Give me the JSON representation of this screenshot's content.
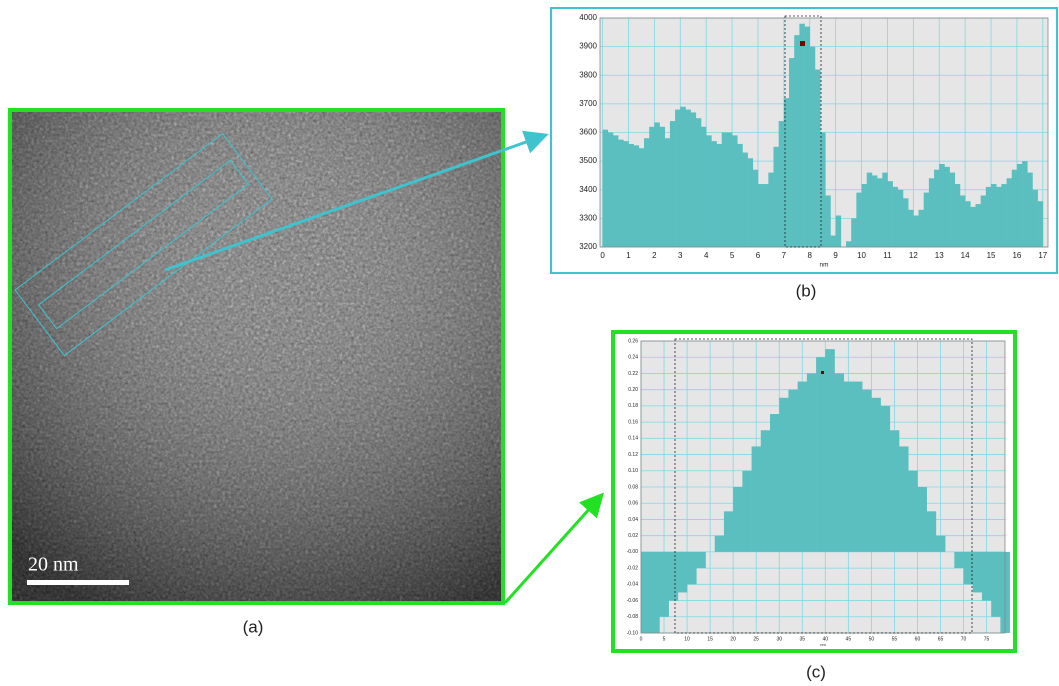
{
  "panels": {
    "a": "(a)",
    "b": "(b)",
    "c": "(c)"
  },
  "scale_bar": "20 nm",
  "chart_data": [
    {
      "type": "area",
      "x_label": "nm",
      "color": "#5bbfbf",
      "grid": true,
      "x": [
        0,
        0.2,
        0.4,
        0.6,
        0.8,
        1.0,
        1.2,
        1.4,
        1.6,
        1.8,
        2.0,
        2.2,
        2.4,
        2.6,
        2.8,
        3.0,
        3.2,
        3.4,
        3.6,
        3.8,
        4.0,
        4.2,
        4.4,
        4.6,
        4.8,
        5.0,
        5.2,
        5.4,
        5.6,
        5.8,
        6.0,
        6.2,
        6.4,
        6.6,
        6.8,
        7.0,
        7.2,
        7.4,
        7.6,
        7.8,
        8.0,
        8.2,
        8.4,
        8.6,
        8.8,
        9.0,
        9.2,
        9.4,
        9.6,
        9.8,
        10.0,
        10.2,
        10.4,
        10.6,
        10.8,
        11.0,
        11.2,
        11.4,
        11.6,
        11.8,
        12.0,
        12.2,
        12.4,
        12.6,
        12.8,
        13.0,
        13.2,
        13.4,
        13.6,
        13.8,
        14.0,
        14.2,
        14.4,
        14.6,
        14.8,
        15.0,
        15.2,
        15.4,
        15.6,
        15.8,
        16.0,
        16.2,
        16.4,
        16.6,
        16.8
      ],
      "values": [
        3610,
        3600,
        3590,
        3575,
        3570,
        3560,
        3555,
        3545,
        3580,
        3620,
        3635,
        3620,
        3580,
        3640,
        3680,
        3690,
        3680,
        3670,
        3650,
        3620,
        3590,
        3570,
        3560,
        3600,
        3600,
        3590,
        3560,
        3530,
        3510,
        3470,
        3420,
        3420,
        3460,
        3550,
        3640,
        3720,
        3860,
        3940,
        3980,
        3970,
        3900,
        3820,
        3600,
        3380,
        3240,
        3310,
        3200,
        3220,
        3300,
        3390,
        3420,
        3460,
        3450,
        3440,
        3460,
        3430,
        3410,
        3400,
        3370,
        3330,
        3310,
        3330,
        3390,
        3440,
        3470,
        3490,
        3480,
        3460,
        3420,
        3380,
        3360,
        3340,
        3350,
        3380,
        3410,
        3420,
        3410,
        3420,
        3440,
        3470,
        3490,
        3500,
        3460,
        3400,
        3360
      ],
      "xlim": [
        -0.1,
        17.2
      ],
      "xticks": [
        0,
        1,
        2,
        3,
        4,
        5,
        6,
        7,
        8,
        9,
        10,
        11,
        12,
        13,
        14,
        15,
        16,
        17
      ],
      "ylim": [
        3200,
        4000
      ],
      "yticks": [
        3200,
        3300,
        3400,
        3500,
        3600,
        3700,
        3800,
        3900,
        4000
      ]
    },
    {
      "type": "area",
      "x_label": "nm",
      "color": "#5bbfbf",
      "grid": true,
      "x": [
        0,
        2,
        4,
        6,
        8,
        10,
        12,
        14,
        16,
        18,
        20,
        22,
        24,
        26,
        28,
        30,
        32,
        34,
        36,
        38,
        40,
        42,
        44,
        46,
        48,
        50,
        52,
        54,
        56,
        58,
        60,
        62,
        64,
        66,
        68,
        70,
        72,
        74,
        76,
        78
      ],
      "values": [
        -0.1,
        -0.1,
        -0.08,
        -0.06,
        -0.05,
        -0.04,
        -0.02,
        0.0,
        0.02,
        0.05,
        0.08,
        0.1,
        0.13,
        0.15,
        0.17,
        0.19,
        0.2,
        0.21,
        0.22,
        0.24,
        0.25,
        0.22,
        0.21,
        0.21,
        0.2,
        0.19,
        0.18,
        0.15,
        0.13,
        0.1,
        0.08,
        0.05,
        0.02,
        0.0,
        -0.02,
        -0.04,
        -0.05,
        -0.06,
        -0.08,
        -0.1
      ],
      "xlim": [
        0,
        79
      ],
      "xticks": [
        0,
        5,
        10,
        15,
        20,
        25,
        30,
        35,
        40,
        45,
        50,
        55,
        60,
        65,
        70,
        75
      ],
      "ylim": [
        -0.1,
        0.26
      ],
      "yticks": [
        {
          "value": -0.1,
          "label": "-0.10"
        },
        {
          "value": -0.08,
          "label": "-0.08"
        },
        {
          "value": -0.06,
          "label": "-0.06"
        },
        {
          "value": -0.04,
          "label": "-0.04"
        },
        {
          "value": -0.02,
          "label": "-0.02"
        },
        {
          "value": 0,
          "label": "-0.00"
        },
        {
          "value": 0.02,
          "label": "0.02"
        },
        {
          "value": 0.04,
          "label": "0.04"
        },
        {
          "value": 0.06,
          "label": "0.06"
        },
        {
          "value": 0.08,
          "label": "0.08"
        },
        {
          "value": 0.1,
          "label": "0.10"
        },
        {
          "value": 0.12,
          "label": "0.12"
        },
        {
          "value": 0.14,
          "label": "0.14"
        },
        {
          "value": 0.16,
          "label": "0.16"
        },
        {
          "value": 0.18,
          "label": "0.18"
        },
        {
          "value": 0.2,
          "label": "0.20"
        },
        {
          "value": 0.22,
          "label": "0.22"
        },
        {
          "value": 0.24,
          "label": "0.24"
        },
        {
          "value": 0.26,
          "label": "0.26"
        }
      ]
    }
  ]
}
